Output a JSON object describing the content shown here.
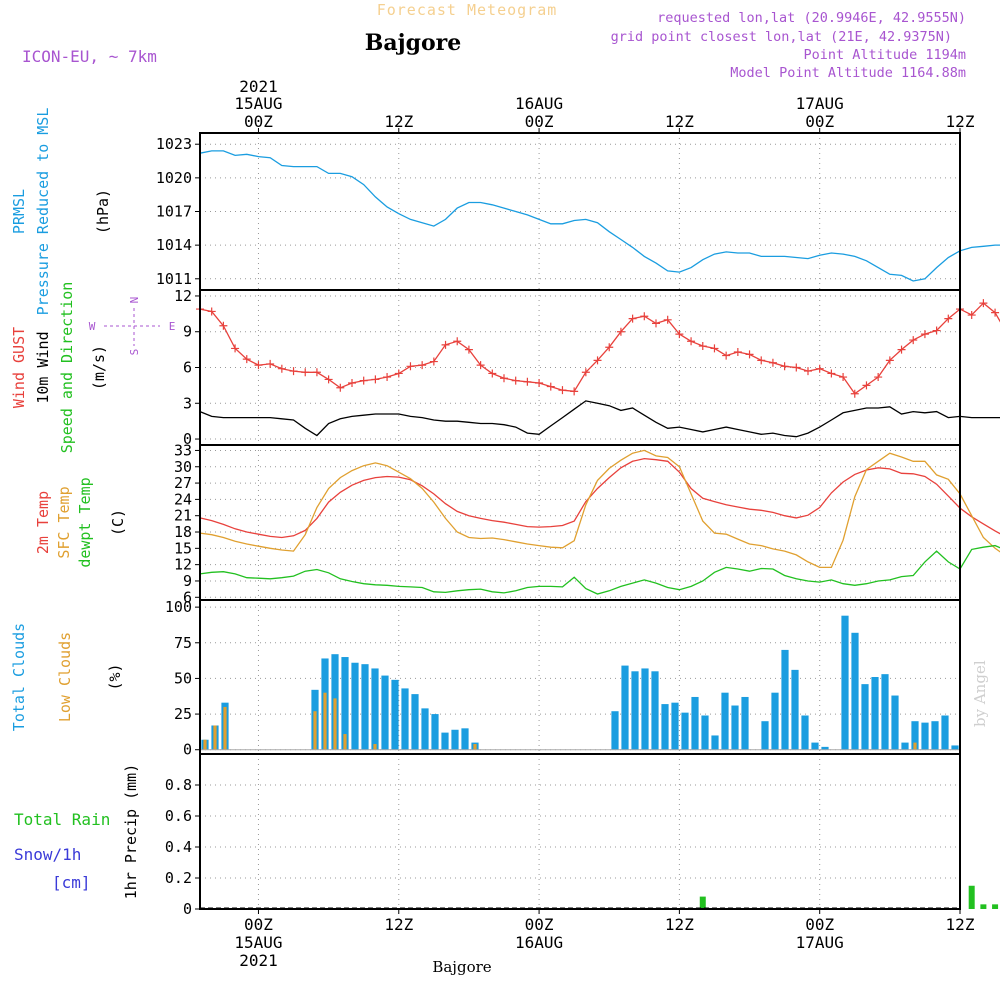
{
  "header": {
    "chart_title": "Forecast Meteogram",
    "location": "Bajgore",
    "model": "ICON-EU, ~ 7km",
    "requested": "requested lon,lat (20.9946E, 42.9555N)",
    "gridpoint": "grid point closest lon,lat (21E, 42.9375N)",
    "point_alt": "Point Altitude 1194m",
    "model_alt": "Model Point Altitude 1164.88m",
    "footer_location": "Bajgore",
    "credit": "by Angel"
  },
  "colors": {
    "pressure": "#1a9de0",
    "gust": "#e8413c",
    "wind": "#000000",
    "temp2m": "#e8413c",
    "sfctemp": "#e0a030",
    "dewpt": "#22c020",
    "total_clouds": "#1a9de0",
    "low_clouds": "#e0a030",
    "rain": "#22c020",
    "snow": "#3a3ad8",
    "meta": "#a855d0",
    "title": "#f5d090"
  },
  "chart_data": {
    "type": "line",
    "time_axis": {
      "start_hour": -5,
      "end_hour": 60,
      "step_hours": 1,
      "tick_hours": [
        0,
        12,
        24,
        36,
        48,
        60
      ],
      "tick_labels": [
        "00Z",
        "12Z",
        "00Z",
        "12Z",
        "00Z",
        "12Z"
      ],
      "date_labels": [
        {
          "hour": 0,
          "text": "15AUG",
          "year": "2021"
        },
        {
          "hour": 24,
          "text": "16AUG",
          "year": ""
        },
        {
          "hour": 48,
          "text": "17AUG",
          "year": ""
        }
      ]
    },
    "panels": [
      {
        "id": "pressure",
        "ylabel_lines": [
          "PRMSL",
          "Pressure Reduced to MSL"
        ],
        "unit": "(hPa)",
        "ylim": [
          1010,
          1024
        ],
        "yticks": [
          1011,
          1014,
          1017,
          1020,
          1023
        ],
        "series": [
          {
            "name": "PRMSL",
            "values": [
              1022.2,
              1022.4,
              1022.4,
              1022.0,
              1022.1,
              1021.9,
              1021.8,
              1021.1,
              1021.0,
              1021.0,
              1021.0,
              1020.4,
              1020.4,
              1020.1,
              1019.4,
              1018.3,
              1017.4,
              1016.8,
              1016.3,
              1016.0,
              1015.7,
              1016.3,
              1017.3,
              1017.8,
              1017.8,
              1017.6,
              1017.3,
              1017.0,
              1016.7,
              1016.3,
              1015.9,
              1015.9,
              1016.2,
              1016.3,
              1016.0,
              1015.2,
              1014.5,
              1013.8,
              1013.0,
              1012.4,
              1011.7,
              1011.6,
              1012.0,
              1012.7,
              1013.2,
              1013.4,
              1013.3,
              1013.3,
              1013.0,
              1013.0,
              1013.0,
              1012.9,
              1012.8,
              1013.1,
              1013.3,
              1013.2,
              1013.0,
              1012.6,
              1012.0,
              1011.4,
              1011.3,
              1010.8,
              1011.0,
              1012.0,
              1012.9,
              1013.5,
              1013.8,
              1013.9,
              1014.0,
              1014.0
            ]
          }
        ]
      },
      {
        "id": "wind",
        "ylabel_lines": [
          "Wind GUST",
          "10m Wind",
          "Speed and Direction"
        ],
        "unit": "(m/s)",
        "compass": {
          "n": "N",
          "s": "S",
          "w": "W",
          "e": "E"
        },
        "ylim": [
          -0.5,
          12.5
        ],
        "yticks": [
          0,
          3,
          6,
          9,
          12
        ],
        "series": [
          {
            "name": "Wind GUST",
            "values": [
              10.9,
              10.7,
              9.5,
              7.6,
              6.7,
              6.2,
              6.3,
              5.9,
              5.7,
              5.6,
              5.6,
              5.0,
              4.3,
              4.7,
              4.9,
              5.0,
              5.2,
              5.5,
              6.1,
              6.2,
              6.5,
              7.9,
              8.2,
              7.5,
              6.2,
              5.5,
              5.1,
              4.9,
              4.8,
              4.7,
              4.4,
              4.1,
              4.0,
              5.6,
              6.6,
              7.7,
              9.0,
              10.1,
              10.3,
              9.7,
              10.0,
              8.8,
              8.2,
              7.8,
              7.6,
              7.0,
              7.3,
              7.1,
              6.6,
              6.4,
              6.1,
              6.0,
              5.7,
              5.9,
              5.5,
              5.2,
              3.8,
              4.5,
              5.2,
              6.6,
              7.5,
              8.3,
              8.8,
              9.1,
              10.1,
              10.9,
              10.4,
              11.4,
              10.6,
              8.9
            ]
          },
          {
            "name": "10m Wind",
            "values": [
              2.3,
              1.9,
              1.8,
              1.8,
              1.8,
              1.8,
              1.8,
              1.7,
              1.6,
              0.9,
              0.3,
              1.3,
              1.7,
              1.9,
              2.0,
              2.1,
              2.1,
              2.1,
              1.9,
              1.8,
              1.6,
              1.5,
              1.5,
              1.4,
              1.3,
              1.3,
              1.2,
              1.0,
              0.5,
              0.4,
              1.1,
              1.8,
              2.5,
              3.2,
              3.0,
              2.8,
              2.4,
              2.6,
              2.0,
              1.4,
              0.9,
              1.0,
              0.8,
              0.6,
              0.8,
              1.0,
              0.8,
              0.6,
              0.4,
              0.5,
              0.3,
              0.2,
              0.5,
              1.0,
              1.6,
              2.2,
              2.4,
              2.6,
              2.6,
              2.7,
              2.1,
              2.3,
              2.2,
              2.3,
              1.8,
              1.9,
              1.8,
              1.8,
              1.8,
              1.8
            ]
          }
        ]
      },
      {
        "id": "temperature",
        "ylabel_lines": [
          "2m Temp",
          "SFC Temp",
          "dewpt Temp"
        ],
        "unit": "(C)",
        "ylim": [
          5.5,
          34
        ],
        "yticks": [
          6,
          9,
          12,
          15,
          18,
          21,
          24,
          27,
          30,
          33
        ],
        "series": [
          {
            "name": "2m Temp",
            "values": [
              20.6,
              20.1,
              19.4,
              18.6,
              18.0,
              17.6,
              17.2,
              17.0,
              17.3,
              18.3,
              20.5,
              23.5,
              25.3,
              26.6,
              27.5,
              28.0,
              28.2,
              28.1,
              27.6,
              26.5,
              25.0,
              23.2,
              21.8,
              21.0,
              20.5,
              20.1,
              19.8,
              19.4,
              19.0,
              18.9,
              19.0,
              19.2,
              20.0,
              23.6,
              26.0,
              28.0,
              29.8,
              31.0,
              31.5,
              31.3,
              31.0,
              29.0,
              26.0,
              24.2,
              23.6,
              23.0,
              22.6,
              22.2,
              22.0,
              21.6,
              21.0,
              20.6,
              21.1,
              22.5,
              25.2,
              27.2,
              28.6,
              29.4,
              29.8,
              29.6,
              28.8,
              28.7,
              28.2,
              26.8,
              24.6,
              22.4,
              20.8,
              19.5,
              18.2,
              17.0
            ]
          },
          {
            "name": "SFC Temp",
            "values": [
              17.8,
              17.5,
              17.0,
              16.3,
              15.8,
              15.4,
              15.0,
              14.7,
              14.5,
              17.5,
              22.5,
              26.0,
              28.0,
              29.3,
              30.2,
              30.7,
              30.2,
              29.0,
              27.8,
              26.0,
              23.5,
              20.5,
              18.0,
              17.0,
              16.8,
              16.9,
              16.6,
              16.2,
              15.8,
              15.5,
              15.2,
              15.1,
              16.4,
              23.0,
              27.5,
              29.7,
              31.2,
              32.5,
              33.0,
              32.0,
              31.7,
              30.0,
              25.0,
              20.0,
              17.8,
              17.6,
              16.7,
              15.8,
              15.5,
              14.9,
              14.5,
              13.8,
              12.5,
              11.5,
              11.5,
              16.5,
              24.5,
              29.5,
              31.0,
              32.5,
              31.8,
              31.0,
              31.0,
              28.5,
              27.7,
              25.0,
              21.0,
              17.0,
              15.0,
              13.5
            ]
          },
          {
            "name": "dewpt Temp",
            "values": [
              10.3,
              10.6,
              10.7,
              10.3,
              9.6,
              9.5,
              9.4,
              9.6,
              9.9,
              10.8,
              11.1,
              10.5,
              9.4,
              8.9,
              8.5,
              8.3,
              8.2,
              8.0,
              7.9,
              7.8,
              7.0,
              6.9,
              7.2,
              7.4,
              7.5,
              7.0,
              6.8,
              7.2,
              7.8,
              8.0,
              8.0,
              7.9,
              9.7,
              7.6,
              6.6,
              7.2,
              8.0,
              8.6,
              9.2,
              8.6,
              7.8,
              7.4,
              8.0,
              9.0,
              10.6,
              11.5,
              11.2,
              10.8,
              11.3,
              11.2,
              10.0,
              9.4,
              9.0,
              8.8,
              9.2,
              8.5,
              8.2,
              8.5,
              9.0,
              9.2,
              9.8,
              10.0,
              12.5,
              14.5,
              12.5,
              11.2,
              14.8,
              15.2,
              15.5,
              14.6
            ]
          }
        ]
      },
      {
        "id": "clouds",
        "ylabel_lines": [
          "Total Clouds",
          "Low Clouds"
        ],
        "unit": "(%)",
        "ylim": [
          -3,
          105
        ],
        "yticks": [
          0,
          25,
          50,
          75,
          100
        ],
        "series": [
          {
            "name": "Total Clouds",
            "values": [
              7,
              17,
              33,
              0,
              0,
              0,
              0,
              0,
              0,
              0,
              0,
              42,
              64,
              67,
              65,
              61,
              60,
              57,
              52,
              49,
              43,
              39,
              29,
              25,
              12,
              14,
              15,
              5,
              0,
              0,
              0,
              0,
              0,
              0,
              0,
              0,
              0,
              0,
              0,
              0,
              0,
              27,
              59,
              55,
              57,
              55,
              32,
              33,
              26,
              37,
              24,
              10,
              40,
              31,
              37,
              0,
              20,
              40,
              70,
              56,
              24,
              5,
              2,
              0,
              94,
              82,
              46,
              51,
              53,
              38,
              5,
              20,
              19,
              20,
              24,
              3
            ]
          },
          {
            "name": "Low Clouds",
            "values": [
              7,
              17,
              30,
              0,
              0,
              0,
              0,
              0,
              0,
              0,
              0,
              27,
              40,
              36,
              11,
              0,
              0,
              4,
              0,
              0,
              0,
              0,
              0,
              0,
              0,
              0,
              0,
              4,
              0,
              0,
              0,
              0,
              0,
              0,
              0,
              0,
              0,
              0,
              0,
              0,
              0,
              0,
              0,
              0,
              0,
              0,
              0,
              0,
              0,
              0,
              0,
              0,
              0,
              0,
              0,
              0,
              0,
              0,
              0,
              0,
              0,
              0,
              0,
              0,
              0,
              0,
              0,
              0,
              0,
              0,
              0,
              5,
              0,
              0,
              0,
              0
            ]
          }
        ]
      },
      {
        "id": "precip",
        "ylabel_lines": [
          "1hr Precip (mm)"
        ],
        "legend_lines": [
          {
            "text": "Total  Rain",
            "series": "rain"
          },
          {
            "text": "Snow/1h",
            "series": "snow"
          },
          {
            "text": "[cm]",
            "series": "snow"
          }
        ],
        "unit": "",
        "ylim": [
          0,
          1.0
        ],
        "yticks": [
          0,
          0.2,
          0.4,
          0.6,
          0.8
        ],
        "ytick_labels": [
          "0",
          "0.2",
          "0.4",
          "0.6",
          "0.8"
        ],
        "bars": [
          {
            "hour": 38,
            "value": 0.08
          },
          {
            "hour": 61,
            "value": 0.15
          },
          {
            "hour": 62,
            "value": 0.03
          },
          {
            "hour": 63,
            "value": 0.03
          }
        ]
      }
    ]
  }
}
